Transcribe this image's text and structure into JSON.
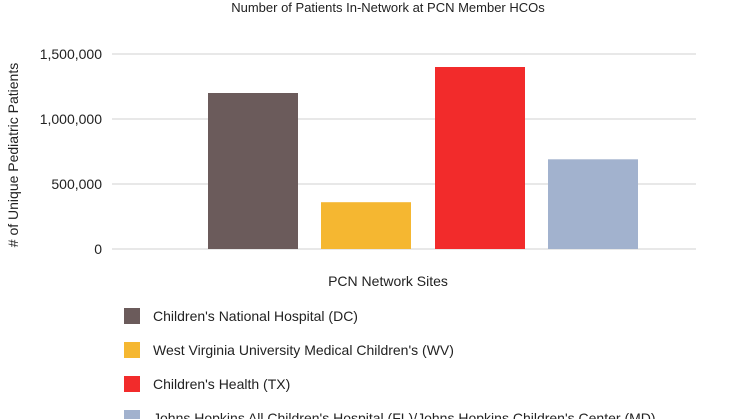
{
  "chart_data": {
    "type": "bar",
    "title": "Number of Patients In-Network at PCN Member HCOs",
    "xlabel": "PCN Network Sites",
    "ylabel": "# of Unique Pediatric Patients",
    "ylim": [
      0,
      1500000
    ],
    "yticks": [
      0,
      500000,
      1000000,
      1500000
    ],
    "ytick_labels": [
      "0",
      "500,000",
      "1,000,000",
      "1,500,000"
    ],
    "grid": true,
    "legend_position": "bottom",
    "series": [
      {
        "name": "Children's National Hospital (DC)",
        "value": 1200000,
        "color": "#6b5b5b"
      },
      {
        "name": "West Virginia University Medical Children's (WV)",
        "value": 360000,
        "color": "#f5b731"
      },
      {
        "name": "Children's Health (TX)",
        "value": 1400000,
        "color": "#f22b2b"
      },
      {
        "name": "Johns Hopkins All Children's Hospital (FL)/Johns Hopkins Children's Center (MD)",
        "value": 690000,
        "color": "#a2b2ce"
      }
    ]
  }
}
